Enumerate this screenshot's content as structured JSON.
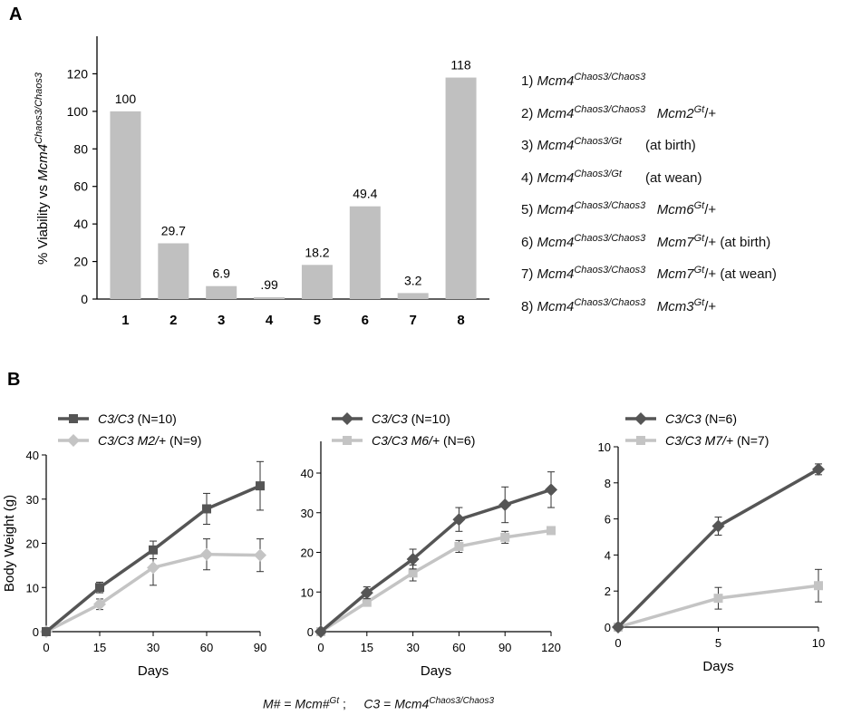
{
  "panel_labels": {
    "a": "A",
    "b": "B"
  },
  "panelA_ylabel": {
    "prefix": "% Viability vs ",
    "gene": "Mcm4",
    "sup": "Chaos3/Chaos3"
  },
  "legendA": [
    {
      "num": "1)",
      "sup": "Chaos3/Chaos3",
      "second": "",
      "second_sup": "",
      "tail": "",
      "note": ""
    },
    {
      "num": "2)",
      "sup": "Chaos3/Chaos3",
      "second": "Mcm2",
      "second_sup": "Gt",
      "tail": "/+",
      "note": ""
    },
    {
      "num": "3)",
      "sup": "Chaos3/Gt",
      "second": "",
      "second_sup": "",
      "tail": "",
      "note": "(at birth)"
    },
    {
      "num": "4)",
      "sup": "Chaos3/Gt",
      "second": "",
      "second_sup": "",
      "tail": "",
      "note": "(at wean)"
    },
    {
      "num": "5)",
      "sup": "Chaos3/Chaos3",
      "second": "Mcm6",
      "second_sup": "Gt",
      "tail": "/+",
      "note": ""
    },
    {
      "num": "6)",
      "sup": "Chaos3/Chaos3",
      "second": "Mcm7",
      "second_sup": "Gt",
      "tail": "/+",
      "note": "(at birth)"
    },
    {
      "num": "7)",
      "sup": "Chaos3/Chaos3",
      "second": "Mcm7",
      "second_sup": "Gt",
      "tail": "/+",
      "note": "(at wean)"
    },
    {
      "num": "8)",
      "sup": "Chaos3/Chaos3",
      "second": "Mcm3",
      "second_sup": "Gt",
      "tail": "/+",
      "note": ""
    }
  ],
  "legend_gene": "Mcm4",
  "footer": {
    "m_left": "M#",
    "m_eq": " = ",
    "m_right": "Mcm#",
    "m_sup": "Gt",
    "sep": " ;     ",
    "c_left": "C3",
    "c_eq": " = ",
    "c_right": "Mcm4",
    "c_sup": "Chaos3/Chaos3"
  },
  "colors": {
    "bar": "#c0c0c0",
    "dark": "#555555",
    "light": "#c4c4c4",
    "axis": "#000000"
  },
  "chart_data": [
    {
      "type": "bar",
      "categories": [
        "1",
        "2",
        "3",
        "4",
        "5",
        "6",
        "7",
        "8"
      ],
      "values": [
        100,
        29.7,
        6.9,
        0.99,
        18.2,
        49.4,
        3.2,
        118
      ],
      "value_labels": [
        "100",
        "29.7",
        "6.9",
        ".99",
        "18.2",
        "49.4",
        "3.2",
        "118"
      ],
      "ylim": [
        0,
        140
      ],
      "yticks": [
        0,
        20,
        40,
        60,
        80,
        100,
        120
      ],
      "xlabel": "",
      "ylabel": "% Viability vs Mcm4 Chaos3/Chaos3"
    },
    {
      "type": "line",
      "x_categories": [
        "0",
        "15",
        "30",
        "60",
        "90"
      ],
      "ylim": [
        0,
        40
      ],
      "yticks": [
        0,
        10,
        20,
        30,
        40
      ],
      "xlabel": "Days",
      "ylabel": "Body Weight (g)",
      "legend_position": "top-left",
      "series": [
        {
          "name": "C3/C3",
          "n": "(N=10)",
          "marker": "square",
          "color": "#555555",
          "values": [
            0,
            10,
            18.5,
            27.8,
            33
          ],
          "errors": [
            0,
            1.2,
            2,
            3.5,
            5.5
          ]
        },
        {
          "name": "C3/C3 M2/+",
          "n": "(N=9)",
          "marker": "diamond",
          "color": "#c4c4c4",
          "values": [
            0,
            6.2,
            14.5,
            17.5,
            17.3
          ],
          "errors": [
            0,
            1.2,
            4,
            3.5,
            3.7
          ]
        }
      ]
    },
    {
      "type": "line",
      "x_categories": [
        "0",
        "15",
        "30",
        "60",
        "90",
        "120"
      ],
      "ylim": [
        0,
        48
      ],
      "yticks": [
        0,
        10,
        20,
        30,
        40
      ],
      "xlabel": "Days",
      "ylabel": "",
      "legend_position": "top-left",
      "series": [
        {
          "name": "C3/C3",
          "n": "(N=10)",
          "marker": "diamond",
          "color": "#555555",
          "values": [
            0,
            9.8,
            18.3,
            28.3,
            32,
            35.8
          ],
          "errors": [
            0,
            1.5,
            2.5,
            3,
            4.5,
            4.5
          ]
        },
        {
          "name": "C3/C3 M6/+",
          "n": "(N=6)",
          "marker": "square",
          "color": "#c4c4c4",
          "values": [
            0,
            7.4,
            14.8,
            21.5,
            23.8,
            25.5
          ],
          "errors": [
            0,
            0.8,
            2,
            1.5,
            1.5,
            0.8
          ]
        }
      ]
    },
    {
      "type": "line",
      "x_categories": [
        "0",
        "5",
        "10"
      ],
      "ylim": [
        0,
        10
      ],
      "yticks": [
        0,
        2,
        4,
        6,
        8,
        10
      ],
      "xlabel": "Days",
      "ylabel": "",
      "legend_position": "top-left",
      "series": [
        {
          "name": "C3/C3",
          "n": "(N=6)",
          "marker": "diamond",
          "color": "#555555",
          "values": [
            0,
            5.6,
            8.75
          ],
          "errors": [
            0,
            0.5,
            0.3
          ]
        },
        {
          "name": "C3/C3 M7/+",
          "n": "(N=7)",
          "marker": "square",
          "color": "#c4c4c4",
          "values": [
            0,
            1.6,
            2.3
          ],
          "errors": [
            0,
            0.6,
            0.9
          ]
        }
      ]
    }
  ]
}
